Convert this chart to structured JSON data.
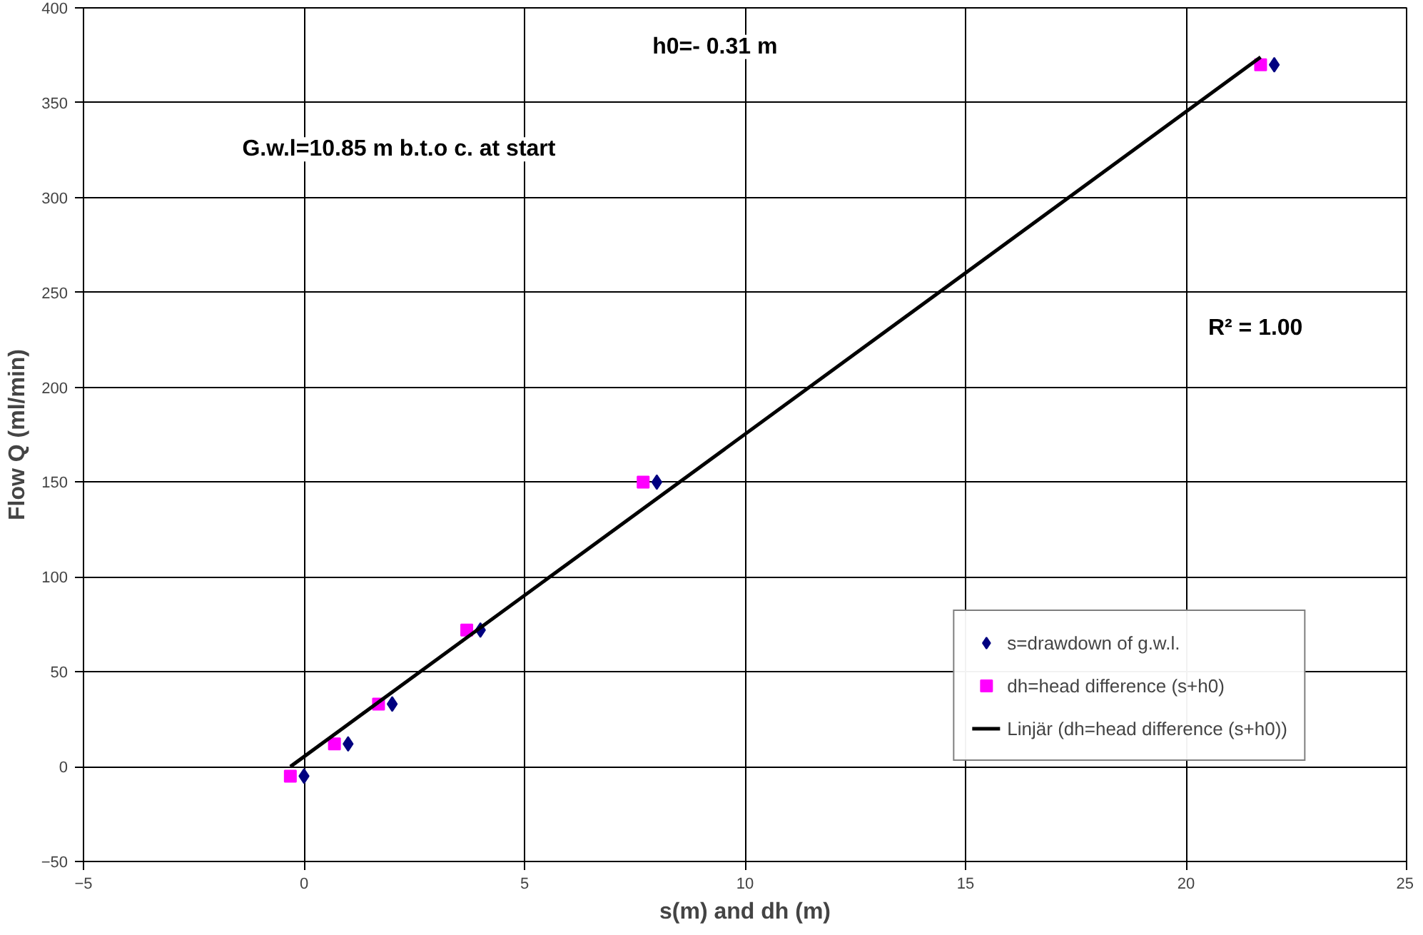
{
  "chart_data": {
    "type": "scatter",
    "xlabel": "s(m) and dh (m)",
    "ylabel": "Flow Q (ml/min)",
    "xlim": [
      -5,
      25
    ],
    "xticks": [
      -5,
      0,
      5,
      10,
      15,
      20,
      25
    ],
    "ylim": [
      -50,
      400
    ],
    "yticks": [
      -50,
      0,
      50,
      100,
      150,
      200,
      250,
      300,
      350,
      400
    ],
    "grid": true,
    "legend": "bottom right",
    "annotations": [
      "h0=- 0.31 m",
      "G.w.l=10.85 m b.t.o c. at start",
      "R² = 1.00"
    ],
    "series": [
      {
        "name": "s=drawdown of g.w.l.",
        "marker": "diamond",
        "color": "#000080",
        "x": [
          0,
          1,
          2,
          4,
          8,
          22
        ],
        "values": [
          -5,
          12,
          33,
          72,
          150,
          370
        ]
      },
      {
        "name": "dh=head difference (s+h0)",
        "marker": "square",
        "color": "#ff00ff",
        "x": [
          -0.31,
          0.69,
          1.69,
          3.69,
          7.69,
          21.69
        ],
        "values": [
          -5,
          12,
          33,
          72,
          150,
          370
        ]
      },
      {
        "name": "Linjär (dh=head difference (s+h0))",
        "type": "line",
        "line_style": "solid",
        "color": "#000000",
        "x": [
          -0.31,
          21.69
        ],
        "values": [
          0,
          374
        ]
      }
    ]
  }
}
